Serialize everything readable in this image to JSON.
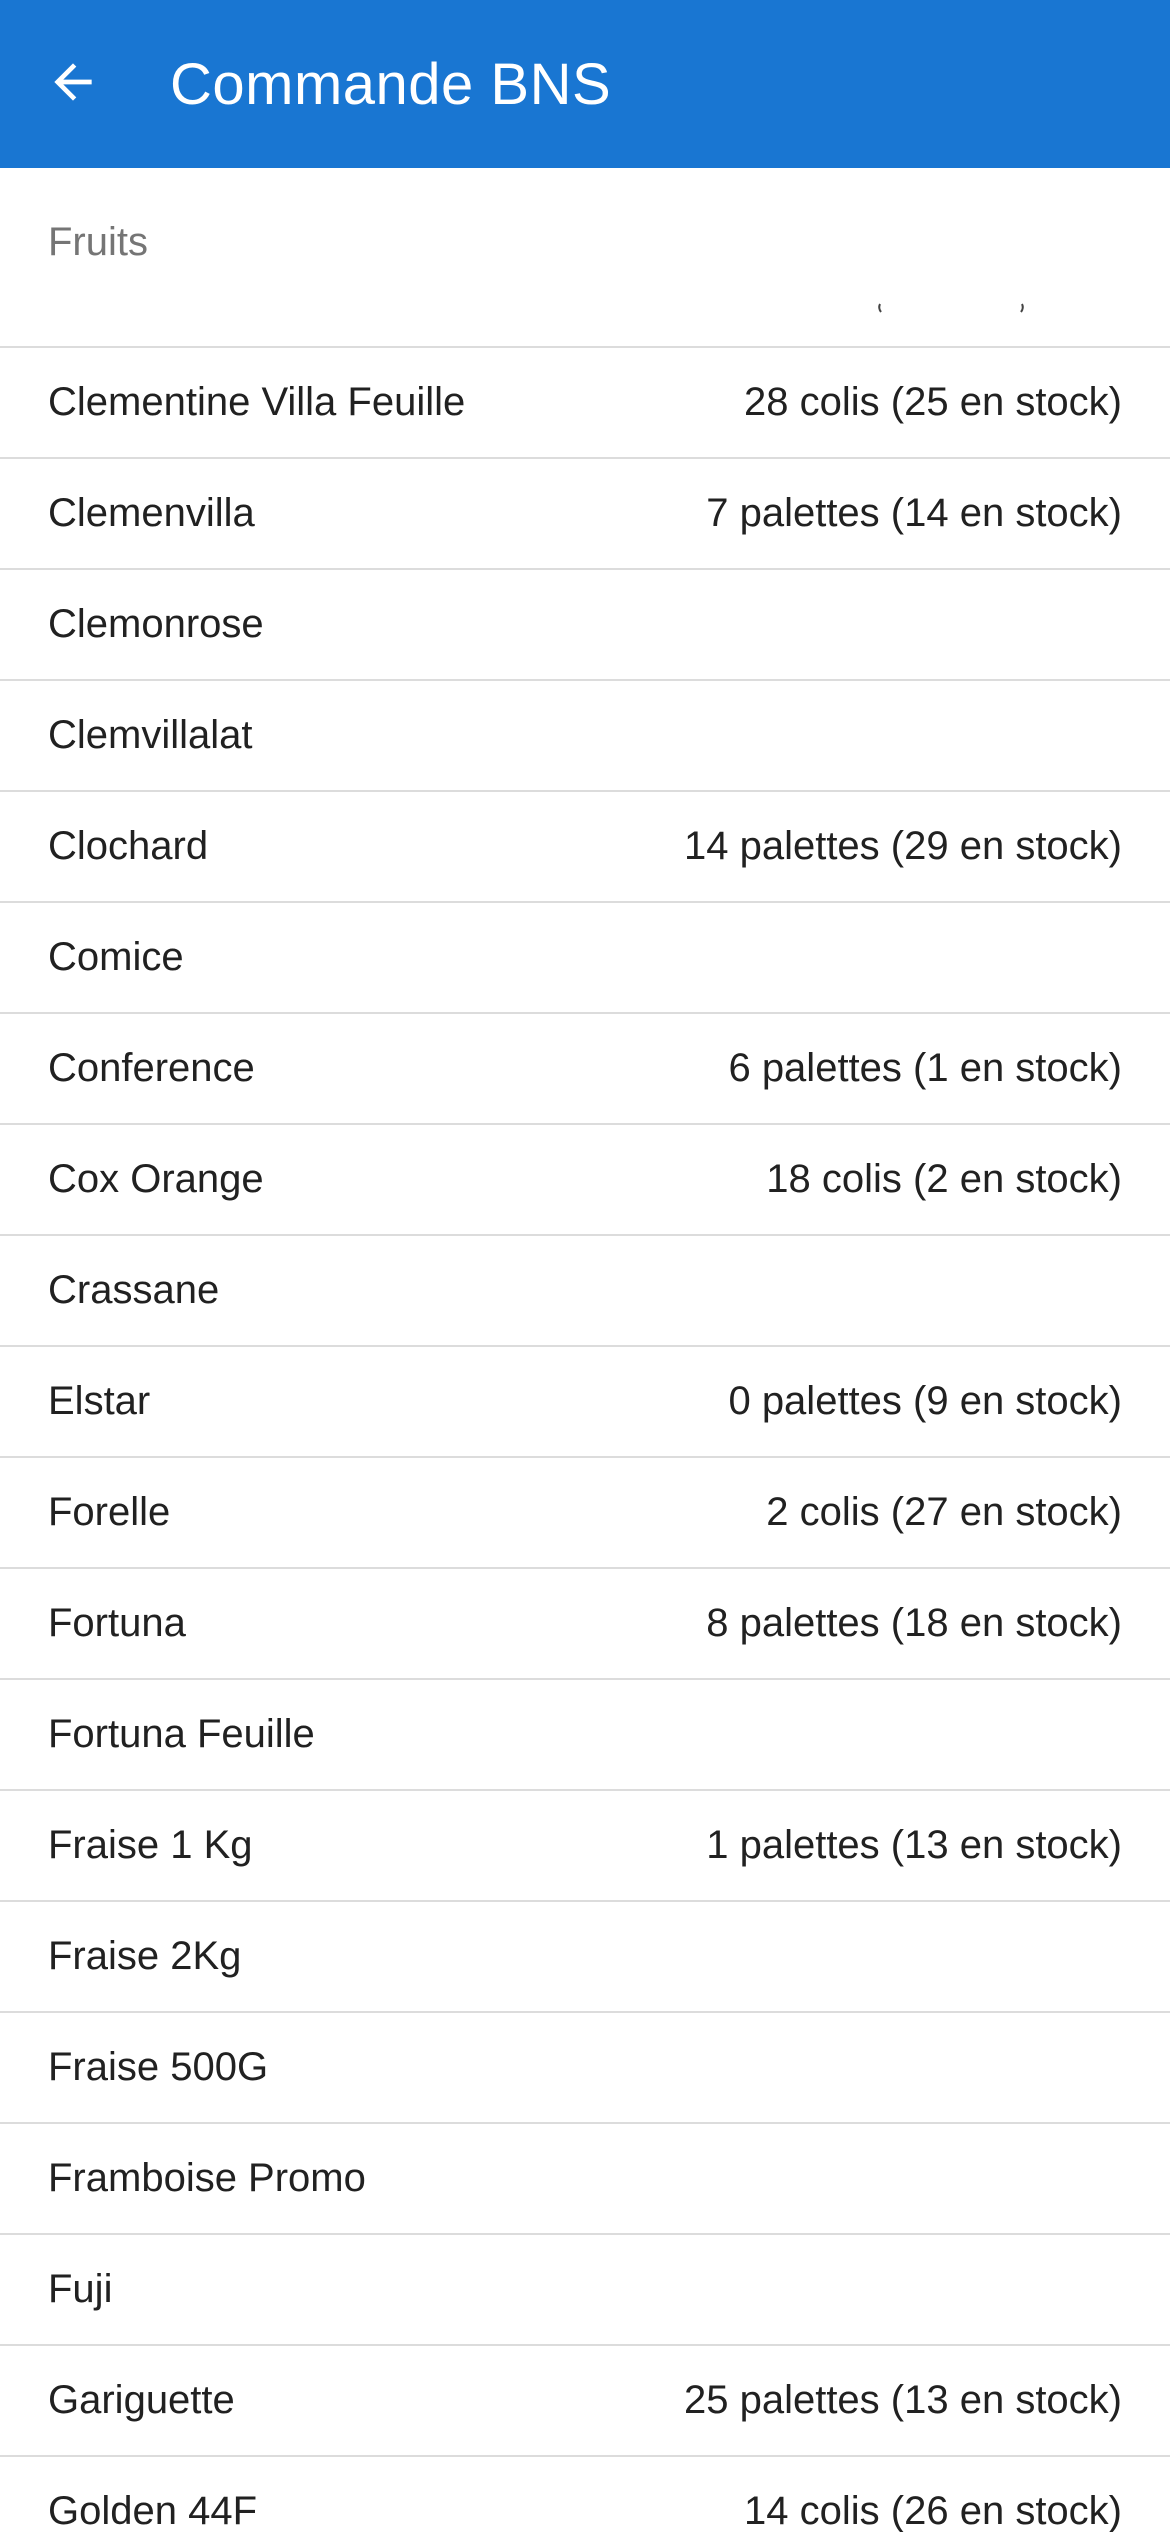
{
  "appbar": {
    "title": "Commande BNS",
    "back_icon": "arrow-left-icon",
    "background": "#1976d2"
  },
  "section": {
    "label": "Fruits"
  },
  "items": [
    {
      "name": "Clementine Villa Feuille",
      "qty": "28 colis (25 en stock)"
    },
    {
      "name": "Clemenvilla",
      "qty": "7 palettes (14 en stock)"
    },
    {
      "name": "Clemonrose",
      "qty": ""
    },
    {
      "name": "Clemvillalat",
      "qty": ""
    },
    {
      "name": "Clochard",
      "qty": "14 palettes (29 en stock)"
    },
    {
      "name": "Comice",
      "qty": ""
    },
    {
      "name": "Conference",
      "qty": "6 palettes (1 en stock)"
    },
    {
      "name": "Cox Orange",
      "qty": "18 colis (2 en stock)"
    },
    {
      "name": "Crassane",
      "qty": ""
    },
    {
      "name": "Elstar",
      "qty": "0 palettes (9 en stock)"
    },
    {
      "name": "Forelle",
      "qty": "2 colis (27 en stock)"
    },
    {
      "name": "Fortuna",
      "qty": "8 palettes (18 en stock)"
    },
    {
      "name": "Fortuna Feuille",
      "qty": ""
    },
    {
      "name": "Fraise 1 Kg",
      "qty": "1 palettes (13 en stock)"
    },
    {
      "name": "Fraise 2Kg",
      "qty": ""
    },
    {
      "name": "Fraise 500G",
      "qty": ""
    },
    {
      "name": "Framboise Promo",
      "qty": ""
    },
    {
      "name": "Fuji",
      "qty": ""
    },
    {
      "name": "Gariguette",
      "qty": "25 palettes (13 en stock)"
    },
    {
      "name": "Golden 44F",
      "qty": "14 colis (26 en stock)"
    }
  ]
}
